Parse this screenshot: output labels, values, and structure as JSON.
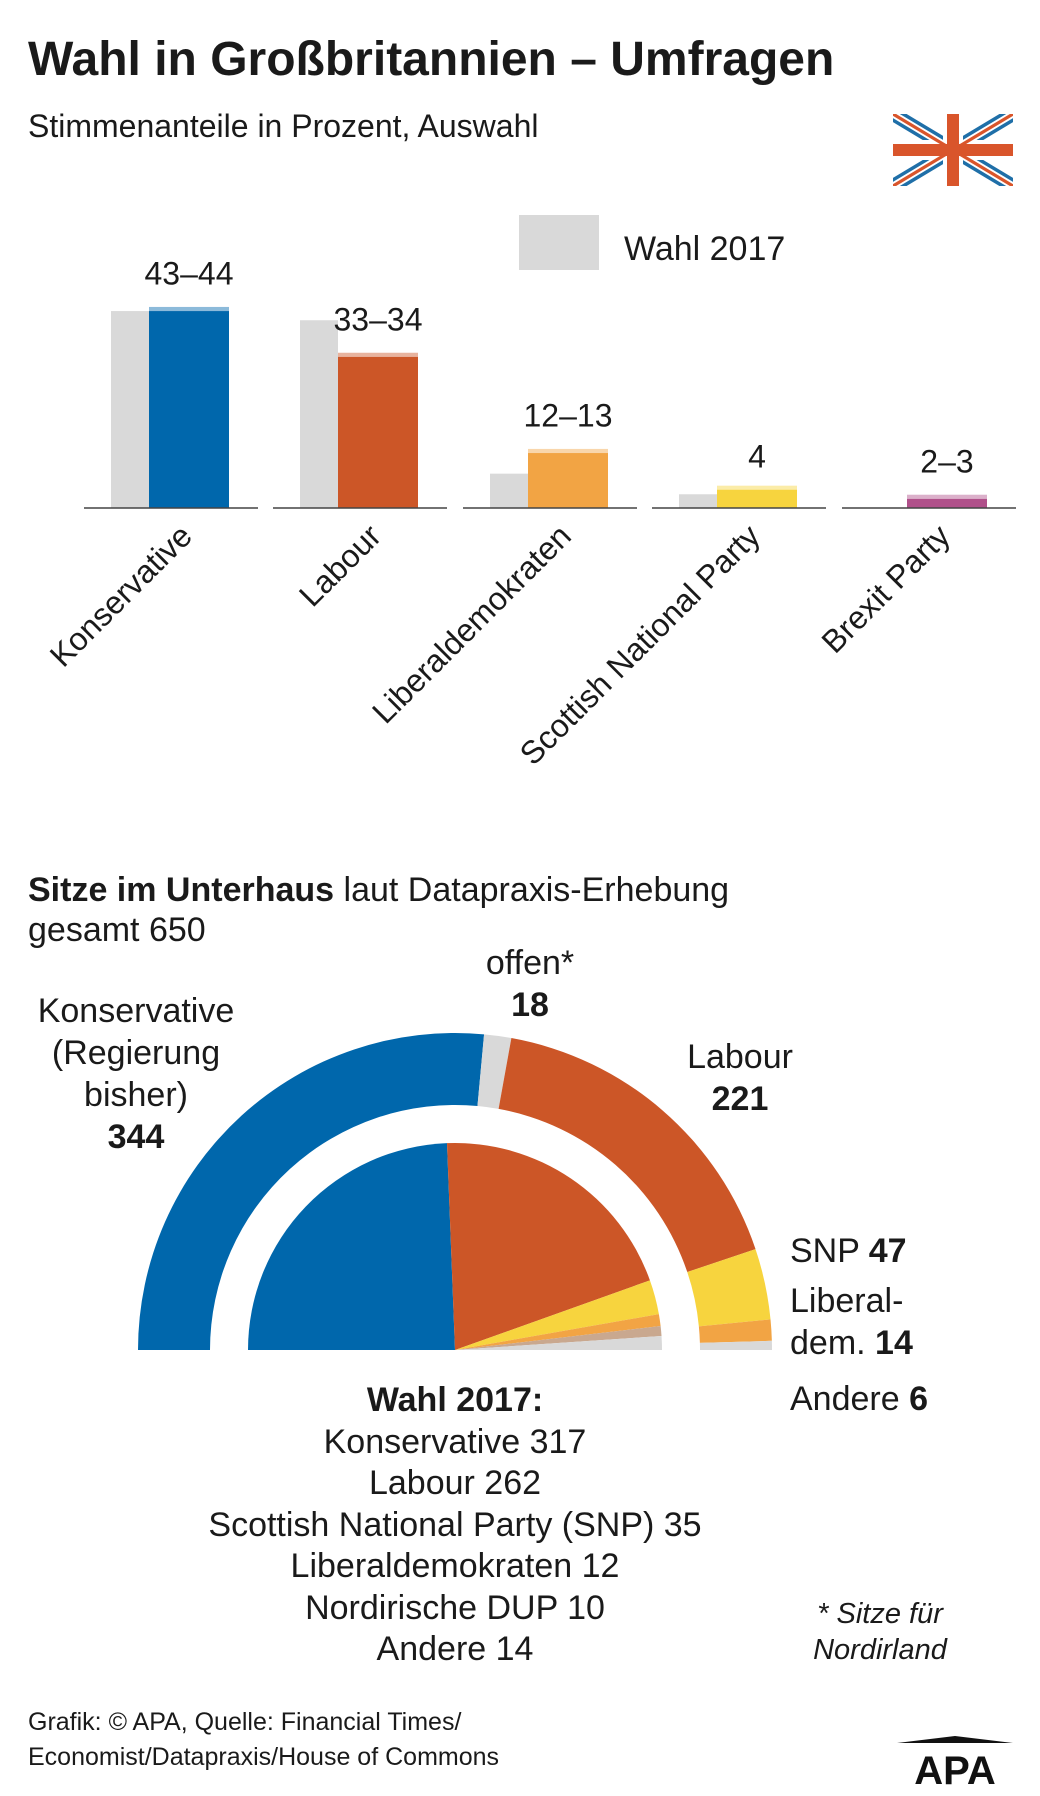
{
  "title": "Wahl in Großbritannien – Umfragen",
  "subtitle": "Stimmenanteile in Prozent, Auswahl",
  "icons": {
    "flag": "union-jack-icon",
    "logo": "apa-logo"
  },
  "chart_data": [
    {
      "type": "bar",
      "categories": [
        "Konservative",
        "Labour",
        "Liberaldemokraten",
        "Scottish National Party",
        "Brexit Party"
      ],
      "series": [
        {
          "name": "Wahl 2017",
          "color": "#d9d9d9",
          "values": [
            43,
            41,
            7.5,
            3,
            0
          ]
        },
        {
          "name": "",
          "ranges": [
            [
              43,
              44
            ],
            [
              33,
              34
            ],
            [
              12,
              13
            ],
            [
              4,
              4
            ],
            [
              2,
              3
            ]
          ],
          "colors": [
            "#0067ac",
            "#cc5627",
            "#f2a444",
            "#f7d43e",
            "#b0508a"
          ],
          "labels": [
            "43–44",
            "33–34",
            "12–13",
            "4",
            "2–3"
          ]
        }
      ],
      "legend": {
        "label": "Wahl 2017",
        "position": "top-right"
      },
      "ylim": [
        0,
        50
      ]
    },
    {
      "type": "pie",
      "title_bold": "Sitze im Unterhaus",
      "title_rest": " laut Datapraxis-Erhebung",
      "total_label": "gesamt 650",
      "total": 650,
      "outer": {
        "categories": [
          "Konservative",
          "offen*",
          "Labour",
          "SNP",
          "Liberaldemokraten",
          "Andere"
        ],
        "values": [
          344,
          18,
          221,
          47,
          14,
          6
        ],
        "colors": [
          "#0067ac",
          "#d9d9d9",
          "#cc5627",
          "#f7d43e",
          "#f2a444",
          "#d9d9d9"
        ]
      },
      "inner": {
        "label": "Wahl 2017",
        "categories": [
          "Konservative",
          "Labour",
          "Scottish National Party (SNP)",
          "Liberaldemokraten",
          "Nordirische DUP",
          "Andere"
        ],
        "values": [
          317,
          262,
          35,
          12,
          10,
          14
        ],
        "colors": [
          "#0067ac",
          "#cc5627",
          "#f7d43e",
          "#f2a444",
          "#c9a88f",
          "#d9d9d9"
        ]
      }
    }
  ],
  "seat_labels": {
    "kons_lines": [
      "Konservative",
      "(Regierung",
      "bisher)"
    ],
    "kons_value": "344",
    "offen_label": "offen*",
    "offen_value": "18",
    "labour_label": "Labour",
    "labour_value": "221",
    "snp_label": "SNP",
    "snp_value": "47",
    "lib_line1": "Liberal-",
    "lib_line2": "dem.",
    "lib_value": "14",
    "andere_label": "Andere",
    "andere_value": "6"
  },
  "result_2017": {
    "heading": "Wahl 2017:",
    "lines": [
      "Konservative 317",
      "Labour 262",
      "Scottish National Party (SNP) 35",
      "Liberaldemokraten 12",
      "Nordirische DUP 10",
      "Andere 14"
    ]
  },
  "footnote": [
    "* Sitze für",
    "Nordirland"
  ],
  "source": [
    "Grafik: © APA, Quelle: Financial Times/",
    "Economist/Datapraxis/House of Commons"
  ],
  "logo_text": "APA"
}
